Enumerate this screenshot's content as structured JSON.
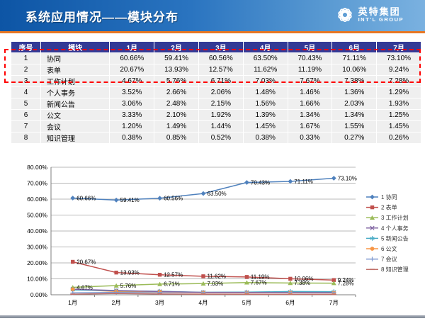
{
  "header": {
    "title": "系统应用情况——模块分布",
    "logo_cn": "英特集团",
    "logo_en": "INT'L GROUP"
  },
  "colors": {
    "header_blue": "#0d55a5",
    "accent_orange": "#e87722",
    "table_header_navy": "#333a96",
    "highlight_red": "#ff0000",
    "footer_gray": "#8b94a2"
  },
  "table": {
    "columns": [
      "序号",
      "模块",
      "1月",
      "2月",
      "3月",
      "4月",
      "5月",
      "6月",
      "7月"
    ],
    "rows": [
      {
        "no": "1",
        "module": "协同",
        "values": [
          "60.66%",
          "59.41%",
          "60.56%",
          "63.50%",
          "70.43%",
          "71.11%",
          "73.10%"
        ]
      },
      {
        "no": "2",
        "module": "表单",
        "values": [
          "20.67%",
          "13.93%",
          "12.57%",
          "11.62%",
          "11.19%",
          "10.06%",
          "9.24%"
        ]
      },
      {
        "no": "3",
        "module": "工作计划",
        "values": [
          "4.67%",
          "5.76%",
          "6.71%",
          "7.03%",
          "7.67%",
          "7.38%",
          "7.28%"
        ]
      },
      {
        "no": "4",
        "module": "个人事务",
        "values": [
          "3.52%",
          "2.66%",
          "2.06%",
          "1.48%",
          "1.46%",
          "1.36%",
          "1.29%"
        ]
      },
      {
        "no": "5",
        "module": "新闻公告",
        "values": [
          "3.06%",
          "2.48%",
          "2.15%",
          "1.56%",
          "1.66%",
          "2.03%",
          "1.93%"
        ]
      },
      {
        "no": "6",
        "module": "公文",
        "values": [
          "3.33%",
          "2.10%",
          "1.92%",
          "1.39%",
          "1.34%",
          "1.34%",
          "1.25%"
        ]
      },
      {
        "no": "7",
        "module": "会议",
        "values": [
          "1.20%",
          "1.49%",
          "1.44%",
          "1.45%",
          "1.67%",
          "1.55%",
          "1.45%"
        ]
      },
      {
        "no": "8",
        "module": "知识管理",
        "values": [
          "0.38%",
          "0.85%",
          "0.52%",
          "0.38%",
          "0.33%",
          "0.27%",
          "0.26%"
        ]
      }
    ],
    "highlighted_rows": [
      "协同",
      "表单"
    ]
  },
  "chart_data": {
    "type": "line",
    "x": [
      "1月",
      "2月",
      "3月",
      "4月",
      "5月",
      "6月",
      "7月"
    ],
    "ylim": [
      0,
      80
    ],
    "ytick_step": 10,
    "ytick_suffix": "%",
    "grid": true,
    "legend_position": "right",
    "series": [
      {
        "name": "1 协同",
        "color": "#4F81BD",
        "marker": "diamond",
        "labels": true,
        "values": [
          60.66,
          59.41,
          60.56,
          63.5,
          70.43,
          71.11,
          73.1
        ]
      },
      {
        "name": "2 表单",
        "color": "#C0504D",
        "marker": "square",
        "labels": true,
        "values": [
          20.67,
          13.93,
          12.57,
          11.62,
          11.19,
          10.06,
          9.24
        ]
      },
      {
        "name": "3 工作计划",
        "color": "#9BBB59",
        "marker": "triangle",
        "labels": true,
        "values": [
          4.67,
          5.76,
          6.71,
          7.03,
          7.67,
          7.38,
          7.28
        ]
      },
      {
        "name": "4 个人事务",
        "color": "#8064A2",
        "marker": "x",
        "labels": false,
        "values": [
          3.52,
          2.66,
          2.06,
          1.48,
          1.46,
          1.36,
          1.29
        ]
      },
      {
        "name": "5 新闻公告",
        "color": "#4BACC6",
        "marker": "asterisk",
        "labels": false,
        "values": [
          3.06,
          2.48,
          2.15,
          1.56,
          1.66,
          2.03,
          1.93
        ]
      },
      {
        "name": "6 公文",
        "color": "#F79646",
        "marker": "circle",
        "labels": false,
        "values": [
          3.33,
          2.1,
          1.92,
          1.39,
          1.34,
          1.34,
          1.25
        ]
      },
      {
        "name": "7 会议",
        "color": "#7F9AD0",
        "marker": "plus",
        "labels": false,
        "values": [
          1.2,
          1.49,
          1.44,
          1.45,
          1.67,
          1.55,
          1.45
        ]
      },
      {
        "name": "8 知识管理",
        "color": "#C0706A",
        "marker": "dash",
        "labels": false,
        "values": [
          0.38,
          0.85,
          0.52,
          0.38,
          0.33,
          0.27,
          0.26
        ]
      }
    ]
  }
}
